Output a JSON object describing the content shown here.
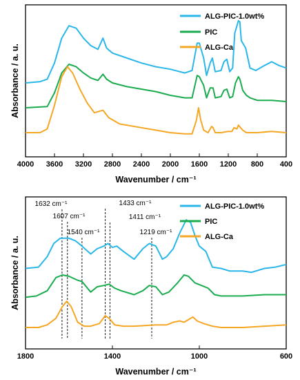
{
  "colors": {
    "series1": "#29b6e8",
    "series2": "#1aab4f",
    "series3": "#f5a623"
  },
  "series_names": [
    "ALG-PIC-1.0wt%",
    "PIC",
    "ALG-Ca"
  ],
  "chart_data": [
    {
      "type": "line",
      "title": "",
      "xlabel": "Wavenumber / cm⁻¹",
      "ylabel": "Absorbance / a. u.",
      "xlim": [
        4000,
        400
      ],
      "x_ticks": [
        "4000",
        "3600",
        "3200",
        "2800",
        "2400",
        "2000",
        "1600",
        "1200",
        "800",
        "400"
      ],
      "y_ticks_shown": false,
      "grid": false,
      "legend": "top-right",
      "series": [
        {
          "name": "ALG-PIC-1.0wt%",
          "offset": 0.62,
          "points": [
            [
              4000,
              0.5
            ],
            [
              3800,
              0.51
            ],
            [
              3700,
              0.53
            ],
            [
              3600,
              0.66
            ],
            [
              3500,
              0.86
            ],
            [
              3400,
              0.96
            ],
            [
              3300,
              0.94
            ],
            [
              3200,
              0.86
            ],
            [
              3100,
              0.8
            ],
            [
              3000,
              0.77
            ],
            [
              2930,
              0.86
            ],
            [
              2880,
              0.78
            ],
            [
              2800,
              0.74
            ],
            [
              2600,
              0.7
            ],
            [
              2400,
              0.66
            ],
            [
              2200,
              0.63
            ],
            [
              2000,
              0.61
            ],
            [
              1800,
              0.58
            ],
            [
              1700,
              0.6
            ],
            [
              1630,
              0.82
            ],
            [
              1600,
              0.82
            ],
            [
              1540,
              0.7
            ],
            [
              1500,
              0.56
            ],
            [
              1450,
              0.66
            ],
            [
              1420,
              0.7
            ],
            [
              1380,
              0.59
            ],
            [
              1300,
              0.6
            ],
            [
              1260,
              0.67
            ],
            [
              1220,
              0.69
            ],
            [
              1180,
              0.59
            ],
            [
              1140,
              0.62
            ],
            [
              1110,
              0.9
            ],
            [
              1060,
              1.0
            ],
            [
              1040,
              0.99
            ],
            [
              1020,
              0.84
            ],
            [
              960,
              0.78
            ],
            [
              900,
              0.62
            ],
            [
              820,
              0.6
            ],
            [
              700,
              0.64
            ],
            [
              600,
              0.67
            ],
            [
              500,
              0.64
            ],
            [
              400,
              0.62
            ]
          ]
        },
        {
          "name": "PIC",
          "offset": 0.34,
          "points": [
            [
              4000,
              0.3
            ],
            [
              3700,
              0.31
            ],
            [
              3600,
              0.42
            ],
            [
              3500,
              0.58
            ],
            [
              3400,
              0.65
            ],
            [
              3300,
              0.63
            ],
            [
              3200,
              0.58
            ],
            [
              3100,
              0.54
            ],
            [
              3000,
              0.52
            ],
            [
              2930,
              0.57
            ],
            [
              2880,
              0.53
            ],
            [
              2800,
              0.5
            ],
            [
              2600,
              0.47
            ],
            [
              2400,
              0.45
            ],
            [
              2200,
              0.43
            ],
            [
              2000,
              0.4
            ],
            [
              1800,
              0.38
            ],
            [
              1700,
              0.38
            ],
            [
              1630,
              0.56
            ],
            [
              1600,
              0.55
            ],
            [
              1540,
              0.48
            ],
            [
              1500,
              0.38
            ],
            [
              1450,
              0.46
            ],
            [
              1410,
              0.46
            ],
            [
              1380,
              0.38
            ],
            [
              1300,
              0.39
            ],
            [
              1260,
              0.44
            ],
            [
              1220,
              0.45
            ],
            [
              1180,
              0.38
            ],
            [
              1140,
              0.39
            ],
            [
              1100,
              0.5
            ],
            [
              1060,
              0.55
            ],
            [
              1040,
              0.53
            ],
            [
              1000,
              0.44
            ],
            [
              950,
              0.4
            ],
            [
              900,
              0.38
            ],
            [
              800,
              0.36
            ],
            [
              600,
              0.36
            ],
            [
              400,
              0.35
            ]
          ]
        },
        {
          "name": "ALG-Ca",
          "offset": 0.0,
          "points": [
            [
              4000,
              0.1
            ],
            [
              3800,
              0.1
            ],
            [
              3700,
              0.13
            ],
            [
              3600,
              0.32
            ],
            [
              3500,
              0.55
            ],
            [
              3420,
              0.63
            ],
            [
              3350,
              0.58
            ],
            [
              3250,
              0.45
            ],
            [
              3150,
              0.34
            ],
            [
              3050,
              0.26
            ],
            [
              2930,
              0.28
            ],
            [
              2850,
              0.22
            ],
            [
              2700,
              0.17
            ],
            [
              2400,
              0.14
            ],
            [
              2200,
              0.12
            ],
            [
              2000,
              0.1
            ],
            [
              1800,
              0.09
            ],
            [
              1700,
              0.09
            ],
            [
              1640,
              0.2
            ],
            [
              1610,
              0.3
            ],
            [
              1580,
              0.2
            ],
            [
              1540,
              0.12
            ],
            [
              1480,
              0.1
            ],
            [
              1430,
              0.15
            ],
            [
              1410,
              0.14
            ],
            [
              1380,
              0.1
            ],
            [
              1300,
              0.1
            ],
            [
              1200,
              0.11
            ],
            [
              1150,
              0.11
            ],
            [
              1120,
              0.14
            ],
            [
              1080,
              0.13
            ],
            [
              1060,
              0.16
            ],
            [
              1030,
              0.14
            ],
            [
              1000,
              0.12
            ],
            [
              950,
              0.1
            ],
            [
              800,
              0.1
            ],
            [
              600,
              0.11
            ],
            [
              400,
              0.1
            ]
          ]
        }
      ]
    },
    {
      "type": "line",
      "title": "",
      "xlabel": "Wavenumber / cm⁻¹",
      "ylabel": "Absorbance / a. u.",
      "xlim": [
        1800,
        600
      ],
      "x_ticks": [
        "1800",
        "1400",
        "1000",
        "600"
      ],
      "y_ticks_shown": false,
      "grid": false,
      "legend": "top-right",
      "annotations": [
        {
          "x": 1632,
          "label": "1632 cm⁻¹"
        },
        {
          "x": 1607,
          "label": "1607 cm⁻¹"
        },
        {
          "x": 1540,
          "label": "1540 cm⁻¹"
        },
        {
          "x": 1433,
          "label": "1433 cm⁻¹"
        },
        {
          "x": 1411,
          "label": "1411 cm⁻¹"
        },
        {
          "x": 1219,
          "label": "1219 cm⁻¹"
        }
      ],
      "series": [
        {
          "name": "ALG-PIC-1.0wt%",
          "points": [
            [
              1800,
              0.55
            ],
            [
              1740,
              0.56
            ],
            [
              1700,
              0.64
            ],
            [
              1670,
              0.74
            ],
            [
              1640,
              0.78
            ],
            [
              1620,
              0.78
            ],
            [
              1600,
              0.78
            ],
            [
              1570,
              0.76
            ],
            [
              1540,
              0.72
            ],
            [
              1500,
              0.66
            ],
            [
              1470,
              0.7
            ],
            [
              1440,
              0.72
            ],
            [
              1420,
              0.74
            ],
            [
              1400,
              0.71
            ],
            [
              1380,
              0.72
            ],
            [
              1350,
              0.68
            ],
            [
              1300,
              0.62
            ],
            [
              1260,
              0.7
            ],
            [
              1230,
              0.74
            ],
            [
              1200,
              0.72
            ],
            [
              1170,
              0.62
            ],
            [
              1150,
              0.64
            ],
            [
              1120,
              0.7
            ],
            [
              1090,
              0.82
            ],
            [
              1060,
              0.92
            ],
            [
              1040,
              0.9
            ],
            [
              1020,
              0.8
            ],
            [
              1000,
              0.72
            ],
            [
              970,
              0.68
            ],
            [
              940,
              0.56
            ],
            [
              900,
              0.55
            ],
            [
              860,
              0.53
            ],
            [
              800,
              0.53
            ],
            [
              760,
              0.52
            ],
            [
              700,
              0.55
            ],
            [
              650,
              0.56
            ],
            [
              600,
              0.58
            ]
          ]
        },
        {
          "name": "PIC",
          "points": [
            [
              1800,
              0.33
            ],
            [
              1750,
              0.34
            ],
            [
              1700,
              0.38
            ],
            [
              1660,
              0.48
            ],
            [
              1630,
              0.5
            ],
            [
              1600,
              0.49
            ],
            [
              1560,
              0.46
            ],
            [
              1540,
              0.45
            ],
            [
              1500,
              0.37
            ],
            [
              1470,
              0.41
            ],
            [
              1440,
              0.42
            ],
            [
              1415,
              0.43
            ],
            [
              1390,
              0.4
            ],
            [
              1360,
              0.38
            ],
            [
              1300,
              0.35
            ],
            [
              1260,
              0.38
            ],
            [
              1230,
              0.42
            ],
            [
              1200,
              0.41
            ],
            [
              1170,
              0.35
            ],
            [
              1140,
              0.37
            ],
            [
              1100,
              0.44
            ],
            [
              1070,
              0.5
            ],
            [
              1050,
              0.49
            ],
            [
              1020,
              0.44
            ],
            [
              990,
              0.42
            ],
            [
              960,
              0.4
            ],
            [
              930,
              0.35
            ],
            [
              900,
              0.34
            ],
            [
              850,
              0.34
            ],
            [
              800,
              0.34
            ],
            [
              700,
              0.35
            ],
            [
              600,
              0.35
            ]
          ]
        },
        {
          "name": "ALG-Ca",
          "points": [
            [
              1800,
              0.1
            ],
            [
              1740,
              0.1
            ],
            [
              1700,
              0.12
            ],
            [
              1660,
              0.17
            ],
            [
              1630,
              0.26
            ],
            [
              1610,
              0.3
            ],
            [
              1590,
              0.26
            ],
            [
              1560,
              0.14
            ],
            [
              1530,
              0.11
            ],
            [
              1500,
              0.11
            ],
            [
              1460,
              0.13
            ],
            [
              1433,
              0.19
            ],
            [
              1415,
              0.17
            ],
            [
              1390,
              0.12
            ],
            [
              1350,
              0.11
            ],
            [
              1300,
              0.11
            ],
            [
              1200,
              0.12
            ],
            [
              1150,
              0.12
            ],
            [
              1120,
              0.14
            ],
            [
              1090,
              0.15
            ],
            [
              1070,
              0.14
            ],
            [
              1050,
              0.16
            ],
            [
              1030,
              0.18
            ],
            [
              1010,
              0.15
            ],
            [
              980,
              0.13
            ],
            [
              940,
              0.11
            ],
            [
              900,
              0.1
            ],
            [
              800,
              0.1
            ],
            [
              700,
              0.11
            ],
            [
              600,
              0.12
            ]
          ]
        }
      ]
    }
  ]
}
